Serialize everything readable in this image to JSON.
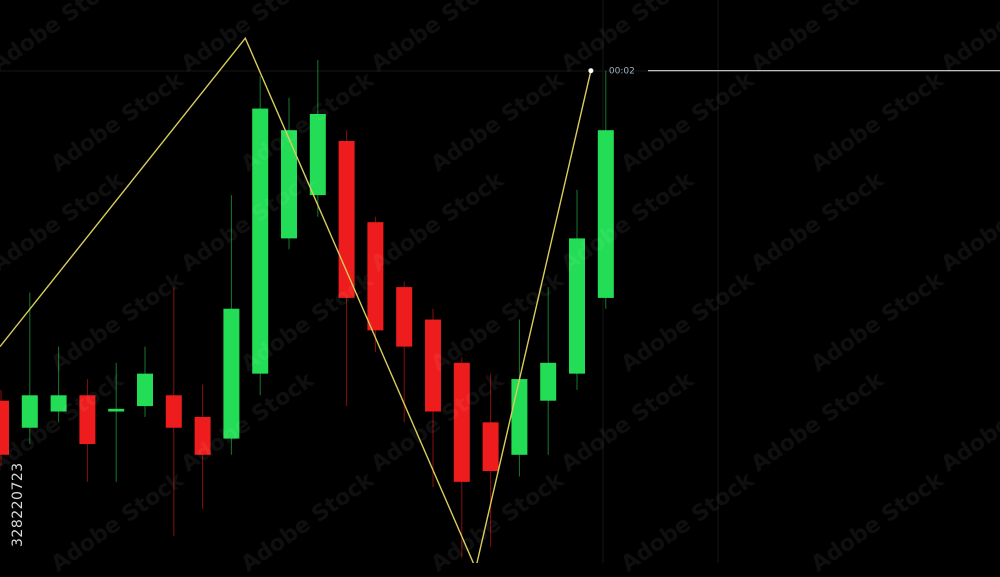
{
  "chart_data": {
    "type": "candlestick",
    "ylim": [
      0,
      100
    ],
    "candles": [
      {
        "open": 30,
        "close": 20,
        "high": 32,
        "low": 18
      },
      {
        "open": 25,
        "close": 31,
        "high": 50,
        "low": 22
      },
      {
        "open": 28,
        "close": 31,
        "high": 40,
        "low": 26
      },
      {
        "open": 31,
        "close": 22,
        "high": 34,
        "low": 15
      },
      {
        "open": 28,
        "close": 28.5,
        "high": 37,
        "low": 15
      },
      {
        "open": 29,
        "close": 35,
        "high": 40,
        "low": 27
      },
      {
        "open": 31,
        "close": 25,
        "high": 51,
        "low": 5
      },
      {
        "open": 27,
        "close": 20,
        "high": 33,
        "low": 10
      },
      {
        "open": 23,
        "close": 47,
        "high": 68,
        "low": 20
      },
      {
        "open": 35,
        "close": 84,
        "high": 90,
        "low": 31
      },
      {
        "open": 60,
        "close": 80,
        "high": 86,
        "low": 58
      },
      {
        "open": 68,
        "close": 83,
        "high": 93,
        "low": 64
      },
      {
        "open": 78,
        "close": 49,
        "high": 80,
        "low": 29
      },
      {
        "open": 63,
        "close": 43,
        "high": 64,
        "low": 39
      },
      {
        "open": 51,
        "close": 40,
        "high": 52,
        "low": 26
      },
      {
        "open": 45,
        "close": 28,
        "high": 47,
        "low": 14
      },
      {
        "open": 37,
        "close": 15,
        "high": 38,
        "low": 1
      },
      {
        "open": 26,
        "close": 17,
        "high": 35,
        "low": 3
      },
      {
        "open": 20,
        "close": 34,
        "high": 45,
        "low": 16
      },
      {
        "open": 30,
        "close": 37,
        "high": 51,
        "low": 20
      },
      {
        "open": 35,
        "close": 60,
        "high": 69,
        "low": 32
      },
      {
        "open": 49,
        "close": 80,
        "high": 91,
        "low": 47
      }
    ],
    "zigzag_indices": [
      8.5,
      16.5,
      20.5
    ],
    "zigzag_values": [
      97,
      -1,
      91
    ],
    "price_label": "00:02",
    "grid": true
  },
  "colors": {
    "up": "#22dd55",
    "down": "#ee1c1c",
    "zigzag": "#d8cd5a",
    "grid": "#161616",
    "price_line": "#d8d8d8"
  },
  "side_id": "328220723",
  "watermark": "Adobe Stock"
}
